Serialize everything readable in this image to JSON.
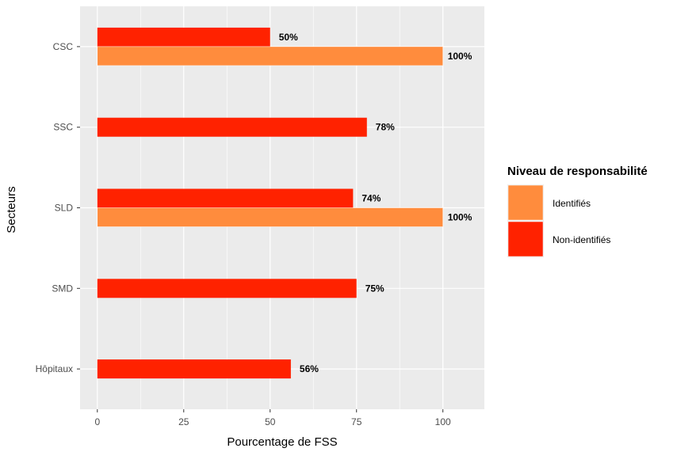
{
  "chart_data": {
    "type": "bar",
    "orientation": "horizontal",
    "categories": [
      "CSC",
      "SSC",
      "SLD",
      "SMD",
      "Hôpitaux"
    ],
    "series": [
      {
        "name": "Non-identifiés",
        "color": "#FF2200",
        "values": [
          50,
          78,
          74,
          75,
          56
        ],
        "labels": [
          "50%",
          "78%",
          "74%",
          "75%",
          "56%"
        ]
      },
      {
        "name": "Identifiés",
        "color": "#FF8C3D",
        "values": [
          100,
          null,
          100,
          null,
          null
        ],
        "labels": [
          "100%",
          "",
          "100%",
          "",
          ""
        ]
      }
    ],
    "xlabel": "Pourcentage de FSS",
    "ylabel": "Secteurs",
    "xlim": [
      -5,
      112
    ],
    "xticks": [
      0,
      25,
      50,
      75,
      100
    ],
    "xtick_labels": [
      "0",
      "25",
      "50",
      "75",
      "100"
    ],
    "grid": true,
    "panel_background": "#EBEBEB",
    "legend": {
      "title": "Niveau de responsabilité",
      "position": "right",
      "entries": [
        {
          "label": "Identifiés",
          "color": "#FF8C3D"
        },
        {
          "label": "Non-identifiés",
          "color": "#FF2200"
        }
      ]
    }
  }
}
